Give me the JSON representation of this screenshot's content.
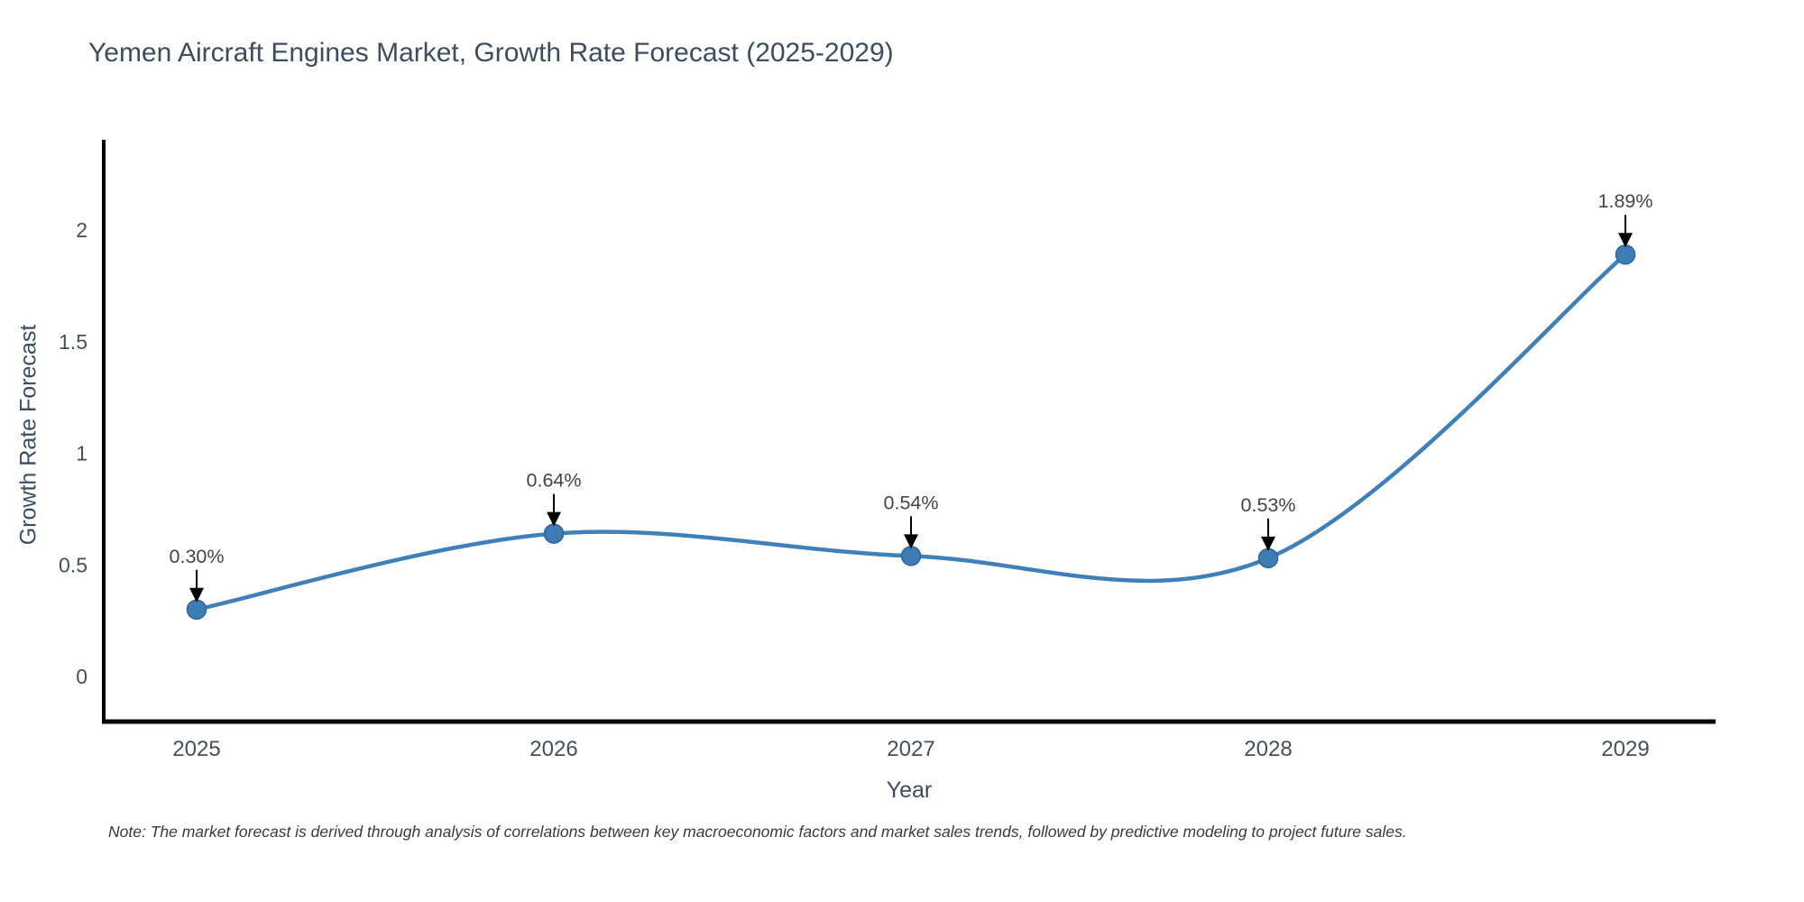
{
  "page": {
    "note": "Note: The market forecast is derived through analysis of correlations between key macroeconomic factors and market sales trends, followed by predictive modeling to project future sales."
  },
  "chart_data": {
    "type": "line",
    "title": "Yemen Aircraft Engines Market, Growth Rate Forecast (2025-2029)",
    "xlabel": "Year",
    "ylabel": "Growth Rate Forecast",
    "categories": [
      "2025",
      "2026",
      "2027",
      "2028",
      "2029"
    ],
    "values": [
      0.3,
      0.64,
      0.54,
      0.53,
      1.89
    ],
    "point_labels": [
      "0.30%",
      "0.64%",
      "0.54%",
      "0.53%",
      "1.89%"
    ],
    "yticks": [
      0,
      0.5,
      1,
      1.5,
      2
    ],
    "ytick_labels": [
      "0",
      "0.5",
      "1",
      "1.5",
      "2"
    ],
    "ylim": [
      -0.2,
      2.4
    ],
    "line_shape": "spline",
    "grid": false,
    "legend": "none",
    "colors": {
      "line": "#4080b8",
      "marker_fill": "#3e7cb5",
      "marker_border": "#2f6396",
      "annotation_text": "#444444",
      "annotation_arrow": "#000000",
      "axis_line": "#000000",
      "tick_label": "#42505e",
      "title_text": "#3b4d61"
    }
  }
}
